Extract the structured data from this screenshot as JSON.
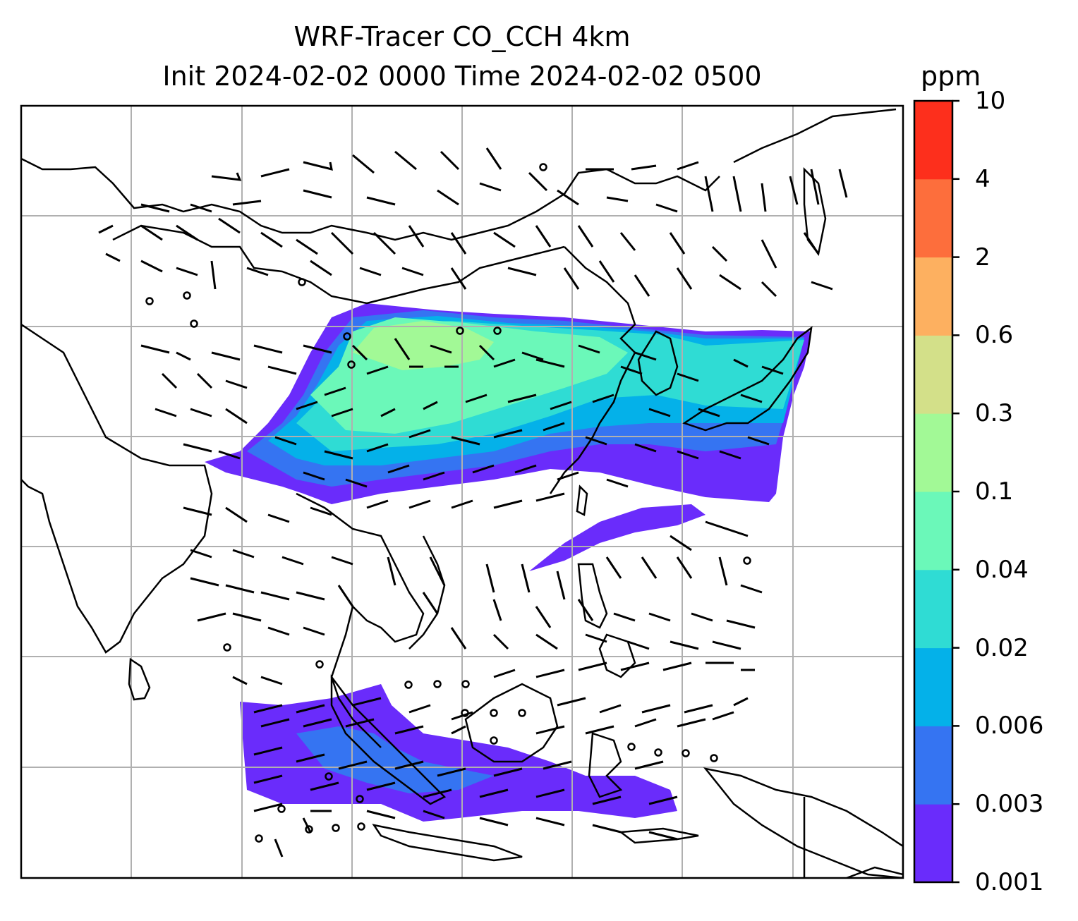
{
  "title_line1": "WRF-Tracer CO_CCH 4km",
  "title_line2": "Init 2024-02-02 0000 Time 2024-02-02 0500",
  "colorbar": {
    "units": "ppm",
    "levels": [
      "0.001",
      "0.003",
      "0.006",
      "0.02",
      "0.04",
      "0.1",
      "0.3",
      "0.6",
      "2",
      "4",
      "10"
    ],
    "colors": [
      "#6a2cfb",
      "#3574f2",
      "#04b1e9",
      "#2fdcd4",
      "#6bf8b9",
      "#a2f996",
      "#d3e089",
      "#fdb060",
      "#fd6e3c",
      "#fd2f1c"
    ]
  },
  "map": {
    "gridlines": true,
    "coastline_color": "#000000",
    "gridline_color": "#b0b0b0"
  }
}
